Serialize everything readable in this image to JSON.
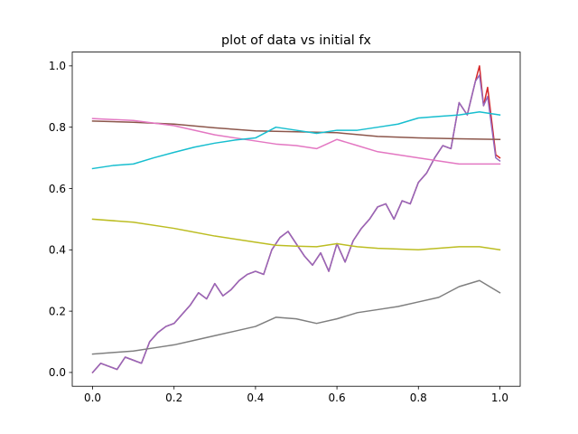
{
  "chart_data": {
    "type": "line",
    "title": "plot of data vs initial fx",
    "xlabel": "",
    "ylabel": "",
    "xlim": [
      -0.05,
      1.05
    ],
    "ylim": [
      -0.045,
      1.045
    ],
    "xticks": [
      0.0,
      0.2,
      0.4,
      0.6,
      0.8,
      1.0
    ],
    "xtick_labels": [
      "0.0",
      "0.2",
      "0.4",
      "0.6",
      "0.8",
      "1.0"
    ],
    "yticks": [
      0.0,
      0.2,
      0.4,
      0.6,
      0.8,
      1.0
    ],
    "ytick_labels": [
      "0.0",
      "0.2",
      "0.4",
      "0.6",
      "0.8",
      "1.0"
    ],
    "grid": false,
    "legend": "none",
    "series": [
      {
        "color": "#d62728",
        "x": [
          0.0,
          0.02,
          0.04,
          0.06,
          0.08,
          0.1,
          0.12,
          0.14,
          0.16,
          0.18,
          0.2,
          0.22,
          0.24,
          0.26,
          0.28,
          0.3,
          0.32,
          0.34,
          0.36,
          0.38,
          0.4,
          0.42,
          0.44,
          0.46,
          0.48,
          0.5,
          0.52,
          0.54,
          0.56,
          0.58,
          0.6,
          0.62,
          0.64,
          0.66,
          0.68,
          0.7,
          0.72,
          0.74,
          0.76,
          0.78,
          0.8,
          0.82,
          0.84,
          0.86,
          0.88,
          0.9,
          0.92,
          0.94,
          0.95,
          0.96,
          0.97,
          0.98,
          0.99,
          1.0
        ],
        "y": [
          0.0,
          0.03,
          0.02,
          0.01,
          0.05,
          0.04,
          0.03,
          0.1,
          0.13,
          0.15,
          0.16,
          0.19,
          0.22,
          0.26,
          0.24,
          0.29,
          0.25,
          0.27,
          0.3,
          0.32,
          0.33,
          0.32,
          0.4,
          0.44,
          0.46,
          0.42,
          0.38,
          0.35,
          0.39,
          0.33,
          0.42,
          0.36,
          0.43,
          0.47,
          0.5,
          0.54,
          0.55,
          0.5,
          0.56,
          0.55,
          0.62,
          0.65,
          0.7,
          0.74,
          0.73,
          0.88,
          0.84,
          0.95,
          1.0,
          0.87,
          0.93,
          0.82,
          0.71,
          0.7
        ]
      },
      {
        "color": "#9467bd",
        "x": [
          0.0,
          0.02,
          0.04,
          0.06,
          0.08,
          0.1,
          0.12,
          0.14,
          0.16,
          0.18,
          0.2,
          0.22,
          0.24,
          0.26,
          0.28,
          0.3,
          0.32,
          0.34,
          0.36,
          0.38,
          0.4,
          0.42,
          0.44,
          0.46,
          0.48,
          0.5,
          0.52,
          0.54,
          0.56,
          0.58,
          0.6,
          0.62,
          0.64,
          0.66,
          0.68,
          0.7,
          0.72,
          0.74,
          0.76,
          0.78,
          0.8,
          0.82,
          0.84,
          0.86,
          0.88,
          0.9,
          0.92,
          0.94,
          0.95,
          0.96,
          0.97,
          0.98,
          0.99,
          1.0
        ],
        "y": [
          0.0,
          0.03,
          0.02,
          0.01,
          0.05,
          0.04,
          0.03,
          0.1,
          0.13,
          0.15,
          0.16,
          0.19,
          0.22,
          0.26,
          0.24,
          0.29,
          0.25,
          0.27,
          0.3,
          0.32,
          0.33,
          0.32,
          0.4,
          0.44,
          0.46,
          0.42,
          0.38,
          0.35,
          0.39,
          0.33,
          0.42,
          0.36,
          0.43,
          0.47,
          0.5,
          0.54,
          0.55,
          0.5,
          0.56,
          0.55,
          0.62,
          0.65,
          0.7,
          0.74,
          0.73,
          0.88,
          0.84,
          0.95,
          0.97,
          0.87,
          0.9,
          0.8,
          0.7,
          0.69
        ]
      },
      {
        "color": "#8c564b",
        "x": [
          0.0,
          0.1,
          0.2,
          0.3,
          0.4,
          0.5,
          0.6,
          0.7,
          0.8,
          0.9,
          1.0
        ],
        "y": [
          0.82,
          0.816,
          0.81,
          0.798,
          0.788,
          0.785,
          0.782,
          0.77,
          0.765,
          0.762,
          0.76
        ]
      },
      {
        "color": "#e377c2",
        "x": [
          0.0,
          0.1,
          0.2,
          0.3,
          0.4,
          0.45,
          0.5,
          0.55,
          0.6,
          0.65,
          0.7,
          0.8,
          0.9,
          1.0
        ],
        "y": [
          0.828,
          0.822,
          0.805,
          0.775,
          0.755,
          0.745,
          0.74,
          0.73,
          0.76,
          0.74,
          0.72,
          0.7,
          0.68,
          0.68
        ]
      },
      {
        "color": "#17becf",
        "x": [
          0.0,
          0.05,
          0.1,
          0.15,
          0.2,
          0.25,
          0.3,
          0.35,
          0.4,
          0.45,
          0.5,
          0.55,
          0.6,
          0.65,
          0.7,
          0.75,
          0.8,
          0.85,
          0.9,
          0.95,
          1.0
        ],
        "y": [
          0.665,
          0.675,
          0.68,
          0.7,
          0.718,
          0.735,
          0.748,
          0.758,
          0.765,
          0.8,
          0.79,
          0.78,
          0.79,
          0.79,
          0.8,
          0.81,
          0.83,
          0.835,
          0.84,
          0.85,
          0.84
        ]
      },
      {
        "color": "#bcbd22",
        "x": [
          0.0,
          0.1,
          0.2,
          0.3,
          0.4,
          0.45,
          0.5,
          0.55,
          0.6,
          0.65,
          0.7,
          0.8,
          0.9,
          0.95,
          1.0
        ],
        "y": [
          0.5,
          0.49,
          0.47,
          0.445,
          0.425,
          0.415,
          0.412,
          0.41,
          0.42,
          0.41,
          0.405,
          0.4,
          0.41,
          0.41,
          0.4
        ]
      },
      {
        "color": "#7f7f7f",
        "x": [
          0.0,
          0.05,
          0.1,
          0.15,
          0.2,
          0.25,
          0.3,
          0.35,
          0.4,
          0.45,
          0.5,
          0.55,
          0.6,
          0.65,
          0.7,
          0.75,
          0.8,
          0.85,
          0.9,
          0.95,
          1.0
        ],
        "y": [
          0.06,
          0.065,
          0.07,
          0.08,
          0.09,
          0.105,
          0.12,
          0.135,
          0.15,
          0.18,
          0.175,
          0.16,
          0.175,
          0.195,
          0.205,
          0.215,
          0.23,
          0.245,
          0.28,
          0.3,
          0.26
        ]
      }
    ]
  }
}
